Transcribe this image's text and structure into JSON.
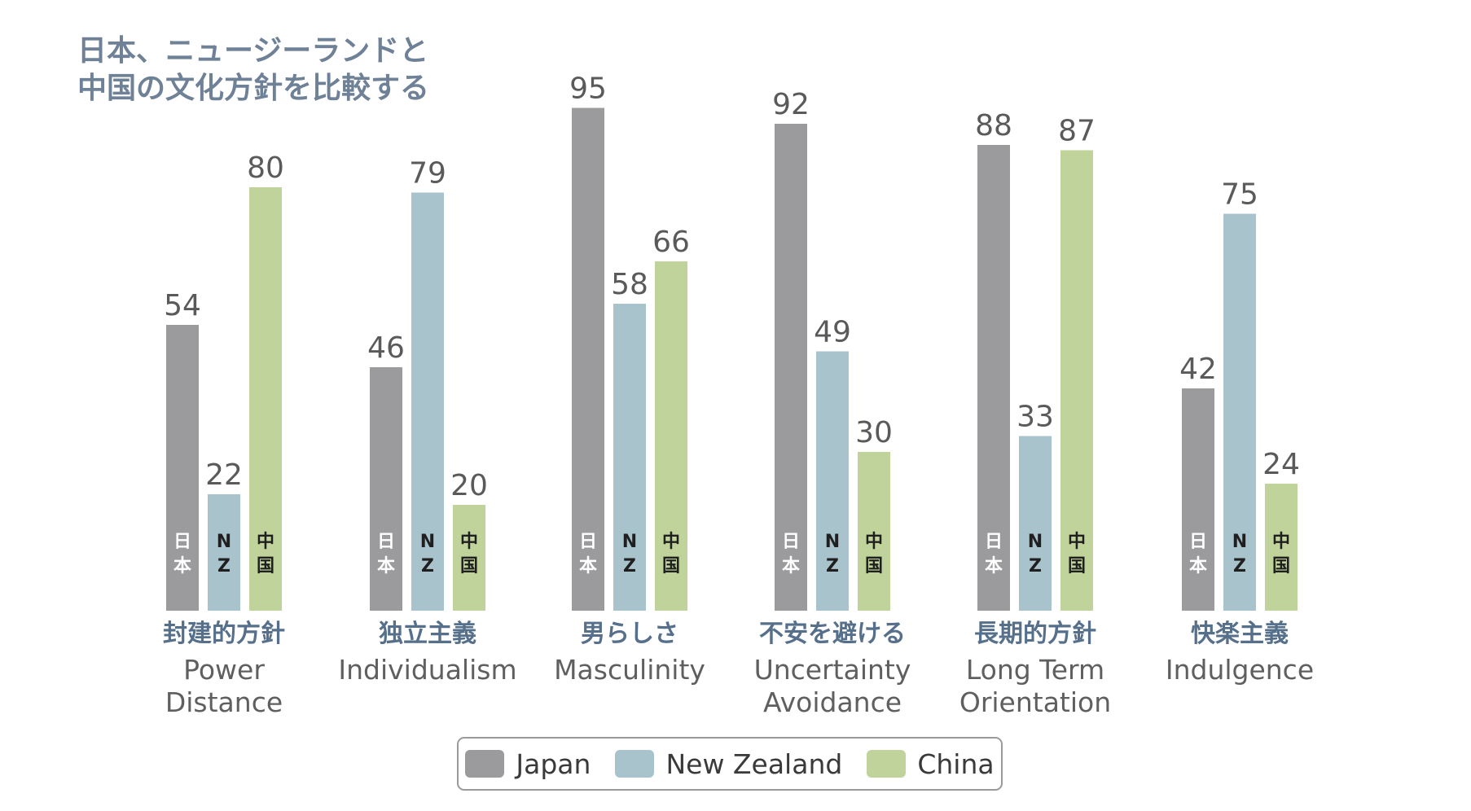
{
  "title": {
    "line1": "日本、ニュージーランドと",
    "line2": "中国の文化方針を比較する"
  },
  "chart_data": {
    "type": "bar",
    "categories": [
      {
        "jp": "封建的方針",
        "en": [
          "Power",
          "Distance"
        ]
      },
      {
        "jp": "独立主義",
        "en": [
          "Individualism"
        ]
      },
      {
        "jp": "男らしさ",
        "en": [
          "Masculinity"
        ]
      },
      {
        "jp": "不安を避ける",
        "en": [
          "Uncertainty",
          "Avoidance"
        ]
      },
      {
        "jp": "長期的方針",
        "en": [
          "Long Term",
          "Orientation"
        ]
      },
      {
        "jp": "快楽主義",
        "en": [
          "Indulgence"
        ]
      }
    ],
    "series": [
      {
        "name": "Japan",
        "bar_label": [
          "日",
          "本"
        ],
        "color": "#9b9b9d",
        "values": [
          54,
          46,
          95,
          92,
          88,
          42
        ]
      },
      {
        "name": "New Zealand",
        "bar_label": [
          "N",
          "Z"
        ],
        "color": "#a9c3cd",
        "values": [
          22,
          79,
          58,
          49,
          33,
          75
        ]
      },
      {
        "name": "China",
        "bar_label": [
          "中",
          "国"
        ],
        "color": "#c0d39a",
        "values": [
          80,
          20,
          66,
          30,
          87,
          24
        ]
      }
    ],
    "ylim": [
      0,
      100
    ],
    "grid": false,
    "legend_position": "bottom",
    "category_label_color": "#56708c",
    "english_label_color": "#5f5f5f",
    "value_label_color": "#5a5a5a"
  }
}
